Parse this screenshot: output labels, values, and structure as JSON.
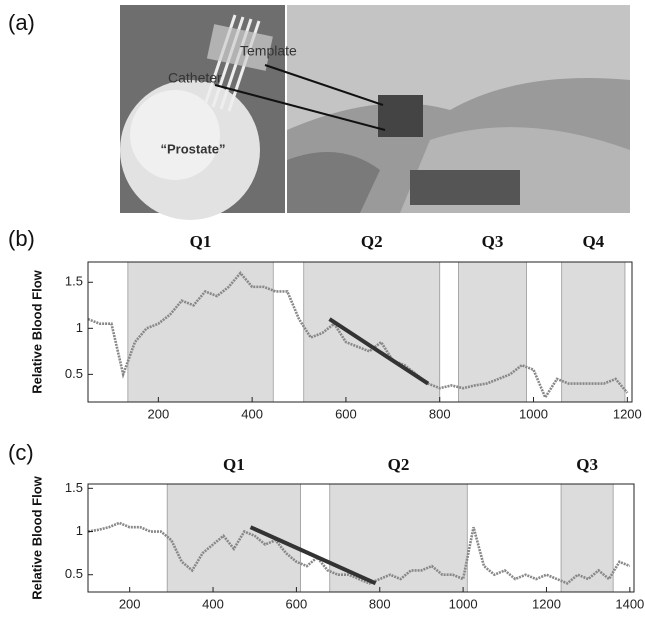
{
  "panels": [
    "(a)",
    "(b)",
    "(c)"
  ],
  "illustration": {
    "template": "Template",
    "catheter": "Catheter",
    "prostate": "“Prostate”"
  },
  "chart_data": [
    {
      "type": "line",
      "y_label": "Relative Blood Flow",
      "xlim": [
        50,
        1210
      ],
      "ylim": [
        0.2,
        1.72
      ],
      "xticks": [
        200,
        400,
        600,
        800,
        1000,
        1200
      ],
      "yticks": [
        0.5,
        1,
        1.5
      ],
      "grid": false,
      "regions": [
        {
          "name": "Q1",
          "start": 135,
          "end": 445
        },
        {
          "name": "Q2",
          "start": 510,
          "end": 800
        },
        {
          "name": "Q3",
          "start": 840,
          "end": 985
        },
        {
          "name": "Q4",
          "start": 1060,
          "end": 1195
        }
      ],
      "trend": {
        "color": "#333333",
        "x": [
          565,
          775
        ],
        "y": [
          1.1,
          0.4
        ]
      },
      "series": [
        {
          "color": "#888888",
          "x": [
            50,
            75,
            100,
            125,
            150,
            175,
            200,
            225,
            250,
            275,
            300,
            325,
            350,
            375,
            400,
            425,
            450,
            475,
            500,
            525,
            550,
            575,
            600,
            625,
            650,
            675,
            700,
            725,
            750,
            775,
            800,
            825,
            850,
            875,
            900,
            925,
            950,
            975,
            1000,
            1025,
            1050,
            1075,
            1100,
            1125,
            1150,
            1175,
            1200
          ],
          "values": [
            1.1,
            1.05,
            1.05,
            0.5,
            0.85,
            1.0,
            1.05,
            1.15,
            1.3,
            1.25,
            1.4,
            1.35,
            1.45,
            1.6,
            1.45,
            1.45,
            1.4,
            1.4,
            1.1,
            0.9,
            0.95,
            1.05,
            0.85,
            0.8,
            0.75,
            0.85,
            0.65,
            0.6,
            0.5,
            0.4,
            0.35,
            0.38,
            0.35,
            0.38,
            0.4,
            0.45,
            0.5,
            0.6,
            0.55,
            0.25,
            0.45,
            0.4,
            0.4,
            0.4,
            0.4,
            0.45,
            0.3
          ]
        }
      ]
    },
    {
      "type": "line",
      "y_label": "Relative Blood Flow",
      "xlim": [
        100,
        1410
      ],
      "ylim": [
        0.3,
        1.55
      ],
      "xticks": [
        200,
        400,
        600,
        800,
        1000,
        1200,
        1400
      ],
      "yticks": [
        0.5,
        1,
        1.5
      ],
      "grid": false,
      "regions": [
        {
          "name": "Q1",
          "start": 290,
          "end": 610
        },
        {
          "name": "Q2",
          "start": 680,
          "end": 1010
        },
        {
          "name": "Q3",
          "start": 1235,
          "end": 1360
        }
      ],
      "trend": {
        "color": "#333333",
        "x": [
          490,
          790
        ],
        "y": [
          1.05,
          0.4
        ]
      },
      "series": [
        {
          "color": "#888888",
          "x": [
            100,
            125,
            150,
            175,
            200,
            225,
            250,
            275,
            300,
            325,
            350,
            375,
            400,
            425,
            450,
            475,
            500,
            525,
            550,
            575,
            600,
            625,
            650,
            675,
            700,
            725,
            750,
            775,
            800,
            825,
            850,
            875,
            900,
            925,
            950,
            975,
            1000,
            1025,
            1050,
            1075,
            1100,
            1125,
            1150,
            1175,
            1200,
            1225,
            1250,
            1275,
            1300,
            1325,
            1350,
            1375,
            1400
          ],
          "values": [
            1.0,
            1.02,
            1.05,
            1.1,
            1.05,
            1.05,
            1.0,
            1.0,
            0.9,
            0.65,
            0.55,
            0.75,
            0.85,
            0.95,
            0.8,
            1.0,
            0.95,
            0.85,
            0.9,
            0.75,
            0.65,
            0.6,
            0.7,
            0.55,
            0.5,
            0.5,
            0.45,
            0.4,
            0.45,
            0.5,
            0.45,
            0.55,
            0.55,
            0.6,
            0.5,
            0.5,
            0.45,
            1.05,
            0.6,
            0.5,
            0.55,
            0.45,
            0.5,
            0.45,
            0.5,
            0.45,
            0.4,
            0.5,
            0.45,
            0.55,
            0.45,
            0.65,
            0.6
          ]
        }
      ]
    }
  ]
}
